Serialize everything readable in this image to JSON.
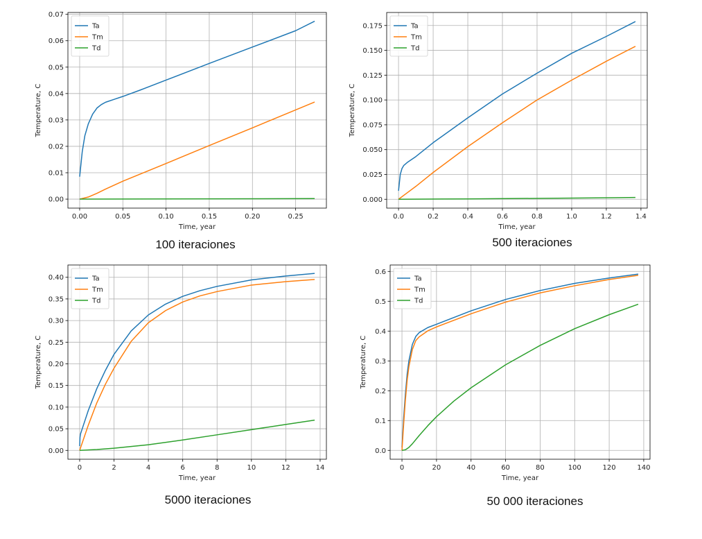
{
  "colors": {
    "Ta": "#1f77b4",
    "Tm": "#ff7f0e",
    "Td": "#2ca02c",
    "grid": "#b0b0b0"
  },
  "chart_data": [
    {
      "type": "line",
      "caption": "100 iteraciones",
      "xlabel": "Time, year",
      "ylabel": "Temperature, C",
      "xlim": [
        -0.0136,
        0.2856
      ],
      "ylim": [
        -0.0034,
        0.0707
      ],
      "xticks": [
        0.0,
        0.05,
        0.1,
        0.15,
        0.2,
        0.25
      ],
      "xtick_labels": [
        "0.00",
        "0.05",
        "0.10",
        "0.15",
        "0.20",
        "0.25"
      ],
      "yticks": [
        0.0,
        0.01,
        0.02,
        0.03,
        0.04,
        0.05,
        0.06,
        0.07
      ],
      "ytick_labels": [
        "0.00",
        "0.01",
        "0.02",
        "0.03",
        "0.04",
        "0.05",
        "0.06",
        "0.07"
      ],
      "grid": true,
      "legend": "top-left",
      "series": [
        {
          "name": "Ta",
          "x": [
            0,
            0.003,
            0.006,
            0.01,
            0.015,
            0.02,
            0.025,
            0.03,
            0.04,
            0.05,
            0.07,
            0.1,
            0.15,
            0.2,
            0.25,
            0.272
          ],
          "y": [
            0.0085,
            0.018,
            0.024,
            0.0285,
            0.0322,
            0.0345,
            0.0358,
            0.0367,
            0.0378,
            0.0389,
            0.0413,
            0.0451,
            0.0514,
            0.0576,
            0.0638,
            0.0674
          ]
        },
        {
          "name": "Tm",
          "x": [
            0,
            0.01,
            0.02,
            0.03,
            0.05,
            0.1,
            0.15,
            0.2,
            0.25,
            0.272
          ],
          "y": [
            0,
            0.0008,
            0.0022,
            0.0038,
            0.0068,
            0.0135,
            0.0203,
            0.027,
            0.0338,
            0.0368
          ]
        },
        {
          "name": "Td",
          "x": [
            0,
            0.272
          ],
          "y": [
            0,
            0.0002
          ]
        }
      ]
    },
    {
      "type": "line",
      "caption": "500 iteraciones",
      "xlabel": "Time, year",
      "ylabel": "Temperature, C",
      "xlim": [
        -0.0684,
        1.4364
      ],
      "ylim": [
        -0.0089,
        0.1881
      ],
      "xticks": [
        0.0,
        0.2,
        0.4,
        0.6,
        0.8,
        1.0,
        1.2,
        1.4
      ],
      "xtick_labels": [
        "0.0",
        "0.2",
        "0.4",
        "0.6",
        "0.8",
        "1.0",
        "1.2",
        "1.4"
      ],
      "yticks": [
        0.0,
        0.025,
        0.05,
        0.075,
        0.1,
        0.125,
        0.15,
        0.175
      ],
      "ytick_labels": [
        "0.000",
        "0.025",
        "0.050",
        "0.075",
        "0.100",
        "0.125",
        "0.150",
        "0.175"
      ],
      "grid": true,
      "legend": "top-left",
      "series": [
        {
          "name": "Ta",
          "x": [
            0,
            0.01,
            0.02,
            0.03,
            0.05,
            0.1,
            0.2,
            0.4,
            0.6,
            0.8,
            1.0,
            1.2,
            1.368
          ],
          "y": [
            0.0085,
            0.025,
            0.031,
            0.034,
            0.037,
            0.043,
            0.057,
            0.082,
            0.106,
            0.127,
            0.147,
            0.164,
            0.179
          ]
        },
        {
          "name": "Tm",
          "x": [
            0,
            0.05,
            0.1,
            0.2,
            0.4,
            0.6,
            0.8,
            1.0,
            1.2,
            1.368
          ],
          "y": [
            0,
            0.0065,
            0.013,
            0.027,
            0.053,
            0.077,
            0.1,
            0.12,
            0.139,
            0.154
          ]
        },
        {
          "name": "Td",
          "x": [
            0,
            0.4,
            0.8,
            1.2,
            1.368
          ],
          "y": [
            0,
            0.0004,
            0.0009,
            0.0015,
            0.0018
          ]
        }
      ]
    },
    {
      "type": "line",
      "caption": "5000 iteraciones",
      "xlabel": "Time, year",
      "ylabel": "Temperature, C",
      "xlim": [
        -0.684,
        14.364
      ],
      "ylim": [
        -0.0204,
        0.4284
      ],
      "xticks": [
        0,
        2,
        4,
        6,
        8,
        10,
        12,
        14
      ],
      "xtick_labels": [
        "0",
        "2",
        "4",
        "6",
        "8",
        "10",
        "12",
        "14"
      ],
      "yticks": [
        0.0,
        0.05,
        0.1,
        0.15,
        0.2,
        0.25,
        0.3,
        0.35,
        0.4
      ],
      "ytick_labels": [
        "0.00",
        "0.05",
        "0.10",
        "0.15",
        "0.20",
        "0.25",
        "0.30",
        "0.35",
        "0.40"
      ],
      "grid": true,
      "legend": "top-left",
      "series": [
        {
          "name": "Ta",
          "x": [
            0,
            0.02,
            0.05,
            0.5,
            1,
            1.5,
            2,
            3,
            4,
            5,
            6,
            7,
            8,
            10,
            12,
            13.68
          ],
          "y": [
            0.01,
            0.03,
            0.038,
            0.092,
            0.143,
            0.185,
            0.222,
            0.276,
            0.313,
            0.338,
            0.356,
            0.369,
            0.379,
            0.394,
            0.403,
            0.409
          ]
        },
        {
          "name": "Tm",
          "x": [
            0,
            0.5,
            1,
            1.5,
            2,
            3,
            4,
            5,
            6,
            7,
            8,
            10,
            12,
            13.68
          ],
          "y": [
            0,
            0.058,
            0.11,
            0.153,
            0.19,
            0.252,
            0.295,
            0.323,
            0.343,
            0.357,
            0.367,
            0.382,
            0.39,
            0.395
          ]
        },
        {
          "name": "Td",
          "x": [
            0,
            1,
            2,
            4,
            6,
            8,
            10,
            12,
            13.68
          ],
          "y": [
            0,
            0.002,
            0.005,
            0.013,
            0.024,
            0.036,
            0.048,
            0.06,
            0.07
          ]
        }
      ]
    },
    {
      "type": "line",
      "caption": "50 000 iteraciones",
      "xlabel": "Time, year",
      "ylabel": "Temperature, C",
      "xlim": [
        -6.84,
        143.64
      ],
      "ylim": [
        -0.0296,
        0.6216
      ],
      "xticks": [
        0,
        20,
        40,
        60,
        80,
        100,
        120,
        140
      ],
      "xtick_labels": [
        "0",
        "20",
        "40",
        "60",
        "80",
        "100",
        "120",
        "140"
      ],
      "yticks": [
        0.0,
        0.1,
        0.2,
        0.3,
        0.4,
        0.5,
        0.6
      ],
      "ytick_labels": [
        "0.0",
        "0.1",
        "0.2",
        "0.3",
        "0.4",
        "0.5",
        "0.6"
      ],
      "grid": true,
      "legend": "top-left",
      "series": [
        {
          "name": "Ta",
          "x": [
            0,
            0.5,
            1,
            2,
            3,
            4,
            6,
            8,
            10,
            15,
            20,
            40,
            60,
            80,
            100,
            120,
            136.8
          ],
          "y": [
            0.01,
            0.06,
            0.11,
            0.19,
            0.255,
            0.3,
            0.355,
            0.382,
            0.395,
            0.412,
            0.423,
            0.468,
            0.506,
            0.536,
            0.56,
            0.578,
            0.591
          ]
        },
        {
          "name": "Tm",
          "x": [
            0,
            1,
            2,
            3,
            4,
            6,
            8,
            10,
            15,
            20,
            40,
            60,
            80,
            100,
            120,
            136.8
          ],
          "y": [
            0,
            0.09,
            0.17,
            0.235,
            0.28,
            0.338,
            0.368,
            0.381,
            0.401,
            0.414,
            0.458,
            0.497,
            0.528,
            0.552,
            0.573,
            0.587
          ]
        },
        {
          "name": "Td",
          "x": [
            0,
            2,
            4,
            6,
            10,
            15,
            20,
            30,
            40,
            60,
            80,
            100,
            120,
            136.8
          ],
          "y": [
            0,
            0.002,
            0.01,
            0.022,
            0.05,
            0.083,
            0.113,
            0.165,
            0.21,
            0.287,
            0.352,
            0.408,
            0.455,
            0.49
          ]
        }
      ]
    }
  ]
}
